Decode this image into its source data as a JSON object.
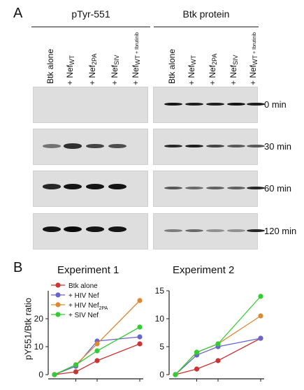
{
  "panel_a": {
    "letter": "A",
    "left_header": "pTyr-551",
    "right_header": "Btk protein",
    "lanes": [
      {
        "main": "Btk alone",
        "sub": "",
        "small": ""
      },
      {
        "main": "+ Nef",
        "sub": "WT",
        "small": ""
      },
      {
        "main": "+ Nef",
        "sub": "2PA",
        "small": ""
      },
      {
        "main": "+ Nef",
        "sub": "SIV",
        "small": ""
      },
      {
        "main": "+ Nef",
        "sub": "WT",
        "small": "+ Ibrutinib"
      }
    ],
    "timepoints": [
      "0 min",
      "30 min",
      "60 min",
      "120 min"
    ],
    "band_intensity_pTyr": [
      [
        0,
        0,
        0,
        0,
        0
      ],
      [
        0.45,
        0.8,
        0.7,
        0.65,
        0
      ],
      [
        0.85,
        0.95,
        0.95,
        0.95,
        0
      ],
      [
        0.95,
        1.0,
        0.95,
        0.95,
        0
      ]
    ],
    "band_intensity_Btk": [
      [
        0.95,
        0.9,
        0.9,
        0.95,
        0.9
      ],
      [
        0.85,
        0.9,
        0.7,
        0.6,
        0.6
      ],
      [
        0.6,
        0.5,
        0.55,
        0.55,
        0.85
      ],
      [
        0.4,
        0.5,
        0.3,
        0.3,
        0.85
      ]
    ]
  },
  "panel_b": {
    "letter": "B",
    "ylabel": "pY551/Btk ratio",
    "legend": [
      "Btk alone",
      "+ HIV Nef",
      "+ HIV Nef2PA",
      "+ SIV Nef"
    ],
    "legend_parts": [
      {
        "main": "Btk alone",
        "sub": ""
      },
      {
        "main": "+ HIV Nef",
        "sub": ""
      },
      {
        "main": "+ HIV Nef",
        "sub": "2PA"
      },
      {
        "main": "+ SIV Nef",
        "sub": ""
      }
    ]
  },
  "colors": {
    "btk_alone": "#cc3333",
    "hiv_nef": "#6666cc",
    "hiv_nef_2pa": "#dd8833",
    "siv_nef": "#33cc33"
  },
  "chart_data": [
    {
      "type": "line",
      "title": "Experiment 1",
      "ylabel": "pY551/Btk ratio",
      "x": [
        0,
        30,
        60,
        120
      ],
      "ylim": [
        0,
        30
      ],
      "yticks": [
        0,
        10,
        20
      ],
      "series": [
        {
          "name": "Btk alone",
          "values": [
            0,
            1,
            5,
            11
          ]
        },
        {
          "name": "+ HIV Nef",
          "values": [
            0,
            3,
            12,
            13.5
          ]
        },
        {
          "name": "+ HIV Nef2PA",
          "values": [
            0,
            3.5,
            11,
            26.5
          ]
        },
        {
          "name": "+ SIV Nef",
          "values": [
            0,
            3.5,
            8.5,
            17
          ]
        }
      ]
    },
    {
      "type": "line",
      "title": "Experiment 2",
      "x": [
        0,
        30,
        60,
        120
      ],
      "ylim": [
        0,
        15
      ],
      "yticks": [
        0,
        5,
        10,
        15
      ],
      "series": [
        {
          "name": "Btk alone",
          "values": [
            0,
            1,
            2.5,
            6.5
          ]
        },
        {
          "name": "+ HIV Nef",
          "values": [
            0,
            3.5,
            5,
            6.5
          ]
        },
        {
          "name": "+ HIV Nef2PA",
          "values": [
            0,
            4,
            5.5,
            10.5
          ]
        },
        {
          "name": "+ SIV Nef",
          "values": [
            0,
            4,
            5.5,
            14
          ]
        }
      ]
    }
  ]
}
